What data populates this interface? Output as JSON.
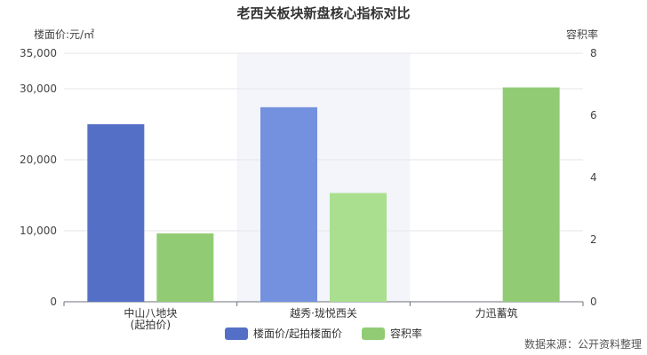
{
  "chart_data": {
    "type": "bar",
    "title": "老西关板块新盘核心指标对比",
    "categories": [
      "中山八地块\n(起拍价)",
      "越秀·珑悦西关",
      "力迅蓄筑"
    ],
    "y_left": {
      "label": "楼面价:元/㎡",
      "ylim": [
        0,
        35000
      ],
      "ticks": [
        "0",
        "10,000",
        "20,000",
        "30,000",
        "35,000"
      ],
      "tick_values": [
        0,
        10000,
        20000,
        30000,
        35000
      ]
    },
    "y_right": {
      "label": "容积率",
      "ylim": [
        0,
        8
      ],
      "ticks": [
        "0",
        "2",
        "4",
        "6",
        "8"
      ],
      "tick_values": [
        0,
        2,
        4,
        6,
        8
      ]
    },
    "series": [
      {
        "name": "楼面价/起拍楼面价",
        "axis": "left",
        "values": [
          25000,
          27400,
          null
        ],
        "colors": [
          "#5470c6",
          "#7391de",
          "#5470c6"
        ]
      },
      {
        "name": "容积率",
        "axis": "right",
        "values": [
          2.2,
          3.5,
          6.9
        ],
        "colors": [
          "#91cc75",
          "#a9df8f",
          "#91cc75"
        ]
      }
    ],
    "highlight_category": 1,
    "legend_position": "bottom-center",
    "grid": true
  },
  "source": "数据来源：公开资料整理"
}
